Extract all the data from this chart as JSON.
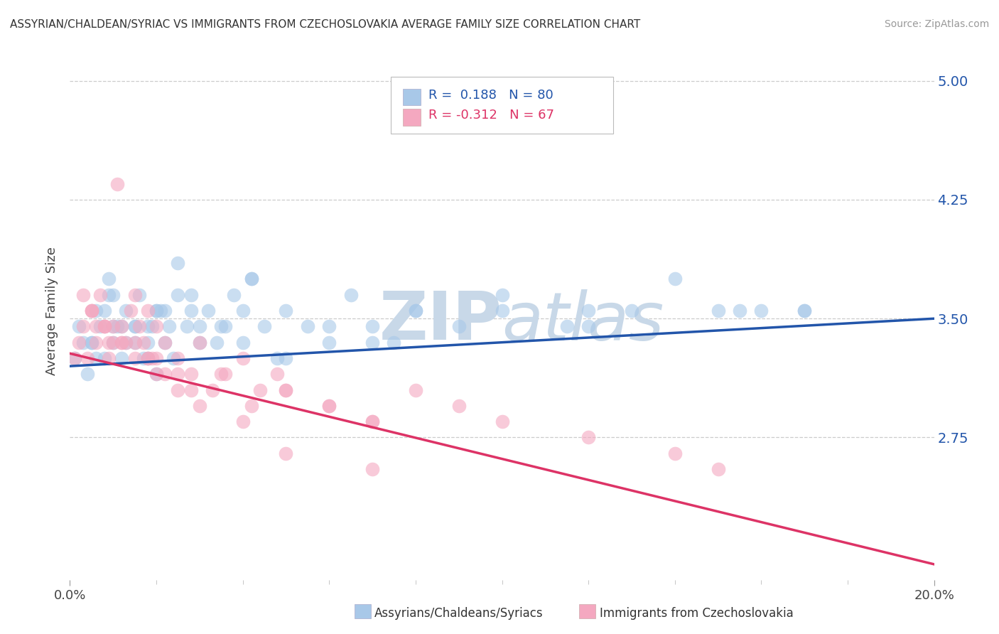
{
  "title": "ASSYRIAN/CHALDEAN/SYRIAC VS IMMIGRANTS FROM CZECHOSLOVAKIA AVERAGE FAMILY SIZE CORRELATION CHART",
  "source": "Source: ZipAtlas.com",
  "xlabel_blue": "Assyrians/Chaldeans/Syriacs",
  "xlabel_pink": "Immigrants from Czechoslovakia",
  "ylabel": "Average Family Size",
  "x_min": 0.0,
  "x_max": 0.2,
  "y_min": 1.85,
  "y_max": 5.25,
  "yticks": [
    2.75,
    3.5,
    4.25,
    5.0
  ],
  "xticks_major": [
    0.0,
    0.2
  ],
  "xtick_minor_step": 0.02,
  "xticklabels_major": [
    "0.0%",
    "20.0%"
  ],
  "blue_R": 0.188,
  "blue_N": 80,
  "pink_R": -0.312,
  "pink_N": 67,
  "blue_dot_color": "#a8c8e8",
  "pink_dot_color": "#f4a8c0",
  "blue_line_color": "#2255aa",
  "pink_line_color": "#dd3366",
  "blue_label_color": "#2255aa",
  "right_axis_color": "#2255aa",
  "watermark_color": "#c8d8e8",
  "blue_trend_x0": 0.0,
  "blue_trend_x1": 0.2,
  "blue_trend_y0": 3.2,
  "blue_trend_y1": 3.5,
  "pink_trend_x0": 0.0,
  "pink_trend_x1": 0.2,
  "pink_trend_y0": 3.28,
  "pink_trend_y1": 1.95,
  "blue_x": [
    0.001,
    0.002,
    0.003,
    0.004,
    0.005,
    0.006,
    0.007,
    0.008,
    0.009,
    0.01,
    0.011,
    0.012,
    0.013,
    0.015,
    0.016,
    0.017,
    0.018,
    0.019,
    0.02,
    0.021,
    0.022,
    0.023,
    0.024,
    0.025,
    0.027,
    0.028,
    0.03,
    0.032,
    0.034,
    0.036,
    0.038,
    0.04,
    0.042,
    0.045,
    0.048,
    0.05,
    0.055,
    0.06,
    0.065,
    0.07,
    0.075,
    0.08,
    0.09,
    0.1,
    0.115,
    0.13,
    0.15,
    0.17,
    0.01,
    0.015,
    0.02,
    0.025,
    0.005,
    0.008,
    0.012,
    0.018,
    0.022,
    0.028,
    0.035,
    0.042,
    0.05,
    0.06,
    0.07,
    0.08,
    0.1,
    0.12,
    0.14,
    0.16,
    0.01,
    0.015,
    0.02,
    0.03,
    0.04,
    0.006,
    0.009,
    0.013,
    0.018,
    0.12,
    0.155,
    0.17
  ],
  "blue_y": [
    3.25,
    3.45,
    3.35,
    3.15,
    3.35,
    3.55,
    3.45,
    3.25,
    3.65,
    3.35,
    3.45,
    3.25,
    3.55,
    3.45,
    3.65,
    3.25,
    3.35,
    3.45,
    3.15,
    3.55,
    3.35,
    3.45,
    3.25,
    3.65,
    3.45,
    3.55,
    3.45,
    3.55,
    3.35,
    3.45,
    3.65,
    3.35,
    3.75,
    3.45,
    3.25,
    3.55,
    3.45,
    3.35,
    3.65,
    3.45,
    3.35,
    3.55,
    3.45,
    3.55,
    3.45,
    3.55,
    3.55,
    3.55,
    3.45,
    3.35,
    3.55,
    3.85,
    3.35,
    3.55,
    3.45,
    3.25,
    3.55,
    3.65,
    3.45,
    3.75,
    3.25,
    3.45,
    3.35,
    3.55,
    3.65,
    3.55,
    3.75,
    3.55,
    3.65,
    3.45,
    3.55,
    3.35,
    3.55,
    3.25,
    3.75,
    3.35,
    3.45,
    3.45,
    3.55,
    3.55
  ],
  "pink_x": [
    0.001,
    0.002,
    0.003,
    0.004,
    0.005,
    0.006,
    0.007,
    0.008,
    0.009,
    0.01,
    0.011,
    0.012,
    0.013,
    0.014,
    0.015,
    0.016,
    0.017,
    0.018,
    0.019,
    0.02,
    0.022,
    0.025,
    0.028,
    0.03,
    0.033,
    0.036,
    0.04,
    0.044,
    0.048,
    0.05,
    0.06,
    0.07,
    0.08,
    0.09,
    0.1,
    0.12,
    0.14,
    0.005,
    0.008,
    0.012,
    0.018,
    0.022,
    0.028,
    0.035,
    0.042,
    0.05,
    0.06,
    0.07,
    0.01,
    0.015,
    0.02,
    0.025,
    0.005,
    0.008,
    0.012,
    0.018,
    0.003,
    0.006,
    0.009,
    0.015,
    0.02,
    0.025,
    0.03,
    0.04,
    0.05,
    0.07,
    0.15
  ],
  "pink_y": [
    3.25,
    3.35,
    3.45,
    3.25,
    3.55,
    3.35,
    3.65,
    3.45,
    3.25,
    3.35,
    4.35,
    3.45,
    3.35,
    3.55,
    3.65,
    3.45,
    3.35,
    3.55,
    3.25,
    3.45,
    3.35,
    3.25,
    3.15,
    3.35,
    3.05,
    3.15,
    3.25,
    3.05,
    3.15,
    3.05,
    2.95,
    2.85,
    3.05,
    2.95,
    2.85,
    2.75,
    2.65,
    3.55,
    3.45,
    3.35,
    3.25,
    3.15,
    3.05,
    3.15,
    2.95,
    3.05,
    2.95,
    2.85,
    3.45,
    3.35,
    3.25,
    3.15,
    3.55,
    3.45,
    3.35,
    3.25,
    3.65,
    3.45,
    3.35,
    3.25,
    3.15,
    3.05,
    2.95,
    2.85,
    2.65,
    2.55,
    2.55
  ]
}
